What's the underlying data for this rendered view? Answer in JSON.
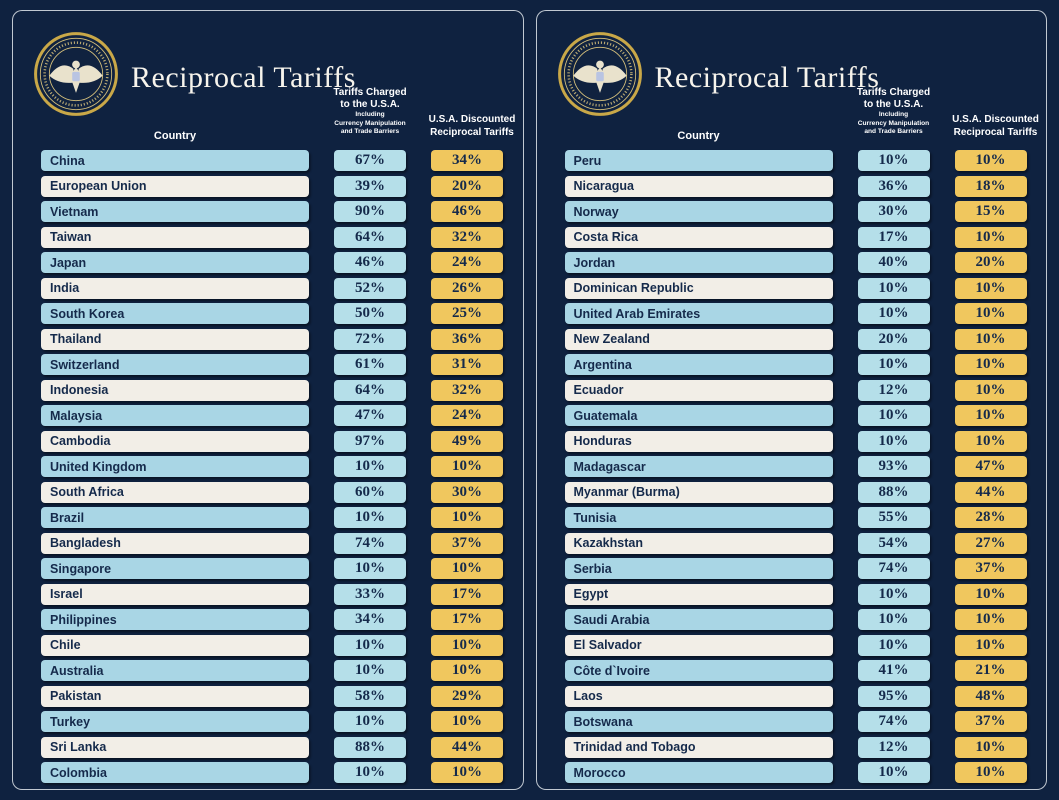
{
  "title": "Reciprocal Tariffs",
  "headers": {
    "country": "Country",
    "charged": [
      "Tariffs Charged",
      "to the U.S.A."
    ],
    "charged_sub": [
      "Including",
      "Currency Manipulation",
      "and Trade Barriers"
    ],
    "discounted": [
      "U.S.A. Discounted",
      "Reciprocal Tariffs"
    ]
  },
  "colors": {
    "background": "#0f2240",
    "row_cyan": "#a9d6e5",
    "row_white": "#f2eee7",
    "charged_box": "#b5dfe9",
    "discounted_box": "#f0c75e",
    "text_dark": "#152a4b",
    "header_text": "#ffffff",
    "seal_gold": "#c9a848"
  },
  "panels": [
    {
      "rows": [
        {
          "country": "China",
          "charged": "67%",
          "discounted": "34%"
        },
        {
          "country": "European Union",
          "charged": "39%",
          "discounted": "20%"
        },
        {
          "country": "Vietnam",
          "charged": "90%",
          "discounted": "46%"
        },
        {
          "country": "Taiwan",
          "charged": "64%",
          "discounted": "32%"
        },
        {
          "country": "Japan",
          "charged": "46%",
          "discounted": "24%"
        },
        {
          "country": "India",
          "charged": "52%",
          "discounted": "26%"
        },
        {
          "country": "South Korea",
          "charged": "50%",
          "discounted": "25%"
        },
        {
          "country": "Thailand",
          "charged": "72%",
          "discounted": "36%"
        },
        {
          "country": "Switzerland",
          "charged": "61%",
          "discounted": "31%"
        },
        {
          "country": "Indonesia",
          "charged": "64%",
          "discounted": "32%"
        },
        {
          "country": "Malaysia",
          "charged": "47%",
          "discounted": "24%"
        },
        {
          "country": "Cambodia",
          "charged": "97%",
          "discounted": "49%"
        },
        {
          "country": "United Kingdom",
          "charged": "10%",
          "discounted": "10%"
        },
        {
          "country": "South Africa",
          "charged": "60%",
          "discounted": "30%"
        },
        {
          "country": "Brazil",
          "charged": "10%",
          "discounted": "10%"
        },
        {
          "country": "Bangladesh",
          "charged": "74%",
          "discounted": "37%"
        },
        {
          "country": "Singapore",
          "charged": "10%",
          "discounted": "10%"
        },
        {
          "country": "Israel",
          "charged": "33%",
          "discounted": "17%"
        },
        {
          "country": "Philippines",
          "charged": "34%",
          "discounted": "17%"
        },
        {
          "country": "Chile",
          "charged": "10%",
          "discounted": "10%"
        },
        {
          "country": "Australia",
          "charged": "10%",
          "discounted": "10%"
        },
        {
          "country": "Pakistan",
          "charged": "58%",
          "discounted": "29%"
        },
        {
          "country": "Turkey",
          "charged": "10%",
          "discounted": "10%"
        },
        {
          "country": "Sri Lanka",
          "charged": "88%",
          "discounted": "44%"
        },
        {
          "country": "Colombia",
          "charged": "10%",
          "discounted": "10%"
        }
      ]
    },
    {
      "rows": [
        {
          "country": "Peru",
          "charged": "10%",
          "discounted": "10%"
        },
        {
          "country": "Nicaragua",
          "charged": "36%",
          "discounted": "18%"
        },
        {
          "country": "Norway",
          "charged": "30%",
          "discounted": "15%"
        },
        {
          "country": "Costa Rica",
          "charged": "17%",
          "discounted": "10%"
        },
        {
          "country": "Jordan",
          "charged": "40%",
          "discounted": "20%"
        },
        {
          "country": "Dominican Republic",
          "charged": "10%",
          "discounted": "10%"
        },
        {
          "country": "United Arab Emirates",
          "charged": "10%",
          "discounted": "10%"
        },
        {
          "country": "New Zealand",
          "charged": "20%",
          "discounted": "10%"
        },
        {
          "country": "Argentina",
          "charged": "10%",
          "discounted": "10%"
        },
        {
          "country": "Ecuador",
          "charged": "12%",
          "discounted": "10%"
        },
        {
          "country": "Guatemala",
          "charged": "10%",
          "discounted": "10%"
        },
        {
          "country": "Honduras",
          "charged": "10%",
          "discounted": "10%"
        },
        {
          "country": "Madagascar",
          "charged": "93%",
          "discounted": "47%"
        },
        {
          "country": "Myanmar (Burma)",
          "charged": "88%",
          "discounted": "44%"
        },
        {
          "country": "Tunisia",
          "charged": "55%",
          "discounted": "28%"
        },
        {
          "country": "Kazakhstan",
          "charged": "54%",
          "discounted": "27%"
        },
        {
          "country": "Serbia",
          "charged": "74%",
          "discounted": "37%"
        },
        {
          "country": "Egypt",
          "charged": "10%",
          "discounted": "10%"
        },
        {
          "country": "Saudi Arabia",
          "charged": "10%",
          "discounted": "10%"
        },
        {
          "country": "El Salvador",
          "charged": "10%",
          "discounted": "10%"
        },
        {
          "country": "Côte d`Ivoire",
          "charged": "41%",
          "discounted": "21%"
        },
        {
          "country": "Laos",
          "charged": "95%",
          "discounted": "48%"
        },
        {
          "country": "Botswana",
          "charged": "74%",
          "discounted": "37%"
        },
        {
          "country": "Trinidad and Tobago",
          "charged": "12%",
          "discounted": "10%"
        },
        {
          "country": "Morocco",
          "charged": "10%",
          "discounted": "10%"
        }
      ]
    }
  ],
  "chart_data": {
    "type": "table",
    "title": "Reciprocal Tariffs",
    "columns": [
      "Country",
      "Tariffs Charged to the U.S.A. Including Currency Manipulation and Trade Barriers",
      "U.S.A. Discounted Reciprocal Tariffs"
    ],
    "rows": [
      [
        "China",
        "67%",
        "34%"
      ],
      [
        "European Union",
        "39%",
        "20%"
      ],
      [
        "Vietnam",
        "90%",
        "46%"
      ],
      [
        "Taiwan",
        "64%",
        "32%"
      ],
      [
        "Japan",
        "46%",
        "24%"
      ],
      [
        "India",
        "52%",
        "26%"
      ],
      [
        "South Korea",
        "50%",
        "25%"
      ],
      [
        "Thailand",
        "72%",
        "36%"
      ],
      [
        "Switzerland",
        "61%",
        "31%"
      ],
      [
        "Indonesia",
        "64%",
        "32%"
      ],
      [
        "Malaysia",
        "47%",
        "24%"
      ],
      [
        "Cambodia",
        "97%",
        "49%"
      ],
      [
        "United Kingdom",
        "10%",
        "10%"
      ],
      [
        "South Africa",
        "60%",
        "30%"
      ],
      [
        "Brazil",
        "10%",
        "10%"
      ],
      [
        "Bangladesh",
        "74%",
        "37%"
      ],
      [
        "Singapore",
        "10%",
        "10%"
      ],
      [
        "Israel",
        "33%",
        "17%"
      ],
      [
        "Philippines",
        "34%",
        "17%"
      ],
      [
        "Chile",
        "10%",
        "10%"
      ],
      [
        "Australia",
        "10%",
        "10%"
      ],
      [
        "Pakistan",
        "58%",
        "29%"
      ],
      [
        "Turkey",
        "10%",
        "10%"
      ],
      [
        "Sri Lanka",
        "88%",
        "44%"
      ],
      [
        "Colombia",
        "10%",
        "10%"
      ],
      [
        "Peru",
        "10%",
        "10%"
      ],
      [
        "Nicaragua",
        "36%",
        "18%"
      ],
      [
        "Norway",
        "30%",
        "15%"
      ],
      [
        "Costa Rica",
        "17%",
        "10%"
      ],
      [
        "Jordan",
        "40%",
        "20%"
      ],
      [
        "Dominican Republic",
        "10%",
        "10%"
      ],
      [
        "United Arab Emirates",
        "10%",
        "10%"
      ],
      [
        "New Zealand",
        "20%",
        "10%"
      ],
      [
        "Argentina",
        "10%",
        "10%"
      ],
      [
        "Ecuador",
        "12%",
        "10%"
      ],
      [
        "Guatemala",
        "10%",
        "10%"
      ],
      [
        "Honduras",
        "10%",
        "10%"
      ],
      [
        "Madagascar",
        "93%",
        "47%"
      ],
      [
        "Myanmar (Burma)",
        "88%",
        "44%"
      ],
      [
        "Tunisia",
        "55%",
        "28%"
      ],
      [
        "Kazakhstan",
        "54%",
        "27%"
      ],
      [
        "Serbia",
        "74%",
        "37%"
      ],
      [
        "Egypt",
        "10%",
        "10%"
      ],
      [
        "Saudi Arabia",
        "10%",
        "10%"
      ],
      [
        "El Salvador",
        "10%",
        "10%"
      ],
      [
        "Côte d`Ivoire",
        "41%",
        "21%"
      ],
      [
        "Laos",
        "95%",
        "48%"
      ],
      [
        "Botswana",
        "74%",
        "37%"
      ],
      [
        "Trinidad and Tobago",
        "12%",
        "10%"
      ],
      [
        "Morocco",
        "10%",
        "10%"
      ]
    ]
  }
}
